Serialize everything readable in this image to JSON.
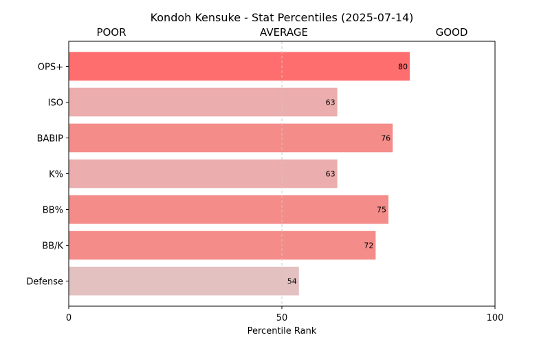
{
  "chart_data": {
    "type": "bar",
    "orientation": "horizontal",
    "title": "Kondoh Kensuke - Stat Percentiles (2025-07-14)",
    "band_labels": [
      "POOR",
      "AVERAGE",
      "GOOD"
    ],
    "categories": [
      "OPS+",
      "ISO",
      "BABIP",
      "K%",
      "BB%",
      "BB/K",
      "Defense"
    ],
    "values": [
      80,
      63,
      76,
      63,
      75,
      72,
      54
    ],
    "bar_colors": [
      "#ff6e6e",
      "#ebadad",
      "#f48c8a",
      "#ebadad",
      "#f48c8a",
      "#f48c8a",
      "#e3c1c1"
    ],
    "xlabel": "Percentile Rank",
    "ylabel": "",
    "xlim": [
      0,
      100
    ],
    "xticks": [
      0,
      50,
      100
    ],
    "reference_line": 50,
    "reference_line_color": "#c8c8c8",
    "grid": false,
    "legend": "none"
  }
}
